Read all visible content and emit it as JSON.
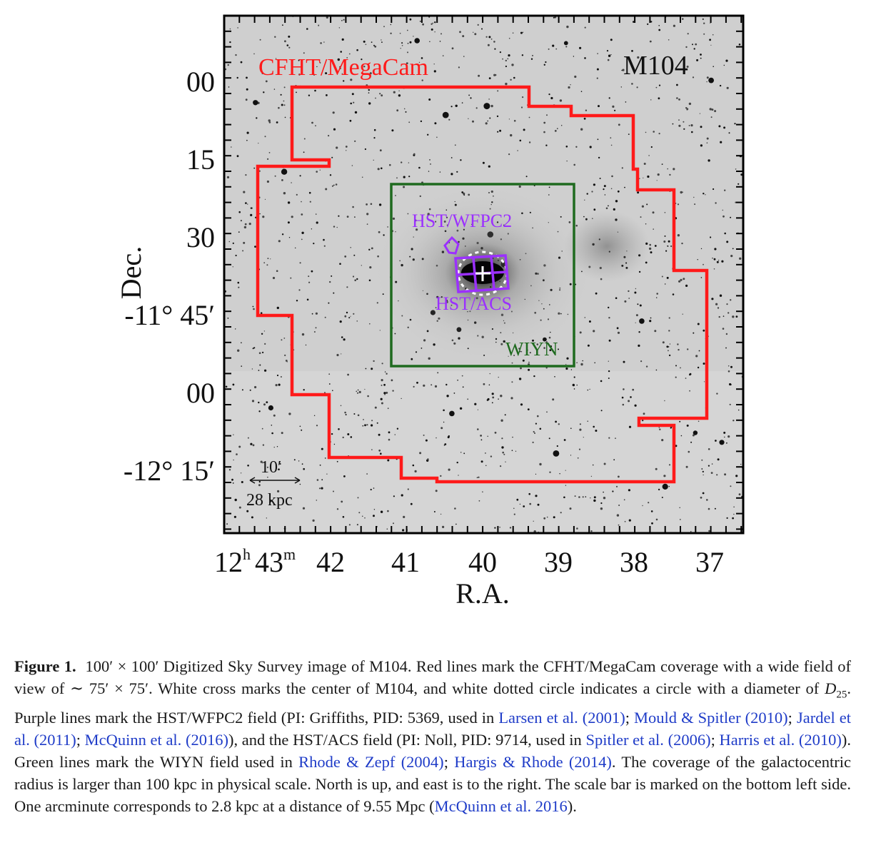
{
  "figure": {
    "target": "M104",
    "field_labels": {
      "cfht": "CFHT/MegaCam",
      "wiyn": "WIYN",
      "wfpc2": "HST/WFPC2",
      "acs": "HST/ACS"
    },
    "colors": {
      "cfht": "#ff1a1a",
      "wiyn": "#1f6a1f",
      "hst": "#9b30ff",
      "frame": "#000000"
    },
    "y_axis": {
      "title": "Dec.",
      "ticks": [
        "00",
        "15",
        "30",
        "-11° 45′",
        "00",
        "-12° 15′"
      ]
    },
    "x_axis": {
      "title": "R.A.",
      "first_tick": {
        "h": "12",
        "h_sup": "h",
        "m": "43",
        "m_sup": "m"
      },
      "ticks": [
        "42",
        "41",
        "40",
        "39",
        "38",
        "37"
      ]
    },
    "scale_bar": {
      "angle": "10′",
      "physical": "28 kpc"
    }
  },
  "caption": {
    "label": "Figure 1.",
    "part1": "100′ × 100′ Digitized Sky Survey image of M104. Red lines mark the CFHT/MegaCam coverage with a wide field of view of ∼ 75′ × 75′. White cross marks the center of M104, and white dotted circle indicates a circle with a diameter of ",
    "d25": "D",
    "d25_sub": "25",
    "part2": ". Purple lines mark the HST/WFPC2 field (PI: Griffiths, PID: 5369, used in ",
    "ref1": "Larsen et al. (2001)",
    "sep1": "; ",
    "ref2": "Mould & Spitler (2010)",
    "sep2": "; ",
    "ref3": "Jardel et al. (2011)",
    "sep3": "; ",
    "ref4": "McQuinn et al. (2016)",
    "part3": "), and the HST/ACS field (PI: Noll, PID: 9714, used in ",
    "ref5": "Spitler et al. (2006)",
    "sep4": "; ",
    "ref6": "Harris et al. (2010)",
    "part4": "). Green lines mark the WIYN field used in ",
    "ref7": "Rhode & Zepf (2004)",
    "sep5": "; ",
    "ref8": "Hargis & Rhode (2014)",
    "part5": ". The coverage of the galactocentric radius is larger than 100 kpc in physical scale. North is up, and east is to the right. The scale bar is marked on the bottom left side. One arcminute corresponds to 2.8 kpc at a distance of 9.55 Mpc (",
    "ref9": "McQuinn et al. 2016",
    "part6": ")."
  }
}
